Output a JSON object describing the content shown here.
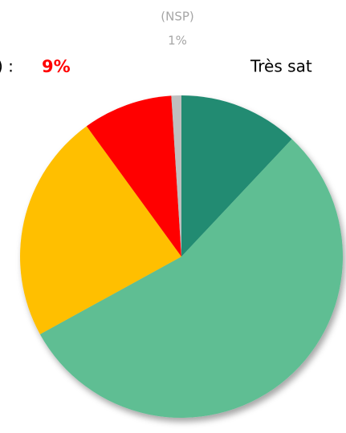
{
  "chart_data": {
    "type": "pie",
    "categories": [
      "Très sat",
      null,
      null,
      ") :",
      "(NSP)"
    ],
    "values": [
      12,
      55,
      23,
      9,
      1
    ],
    "value_labels": [
      null,
      null,
      null,
      "9%",
      "1%"
    ],
    "colors": [
      "#238b72",
      "#5ebe93",
      "#ffbf00",
      "#ff0000",
      "#bfbfbf"
    ]
  }
}
